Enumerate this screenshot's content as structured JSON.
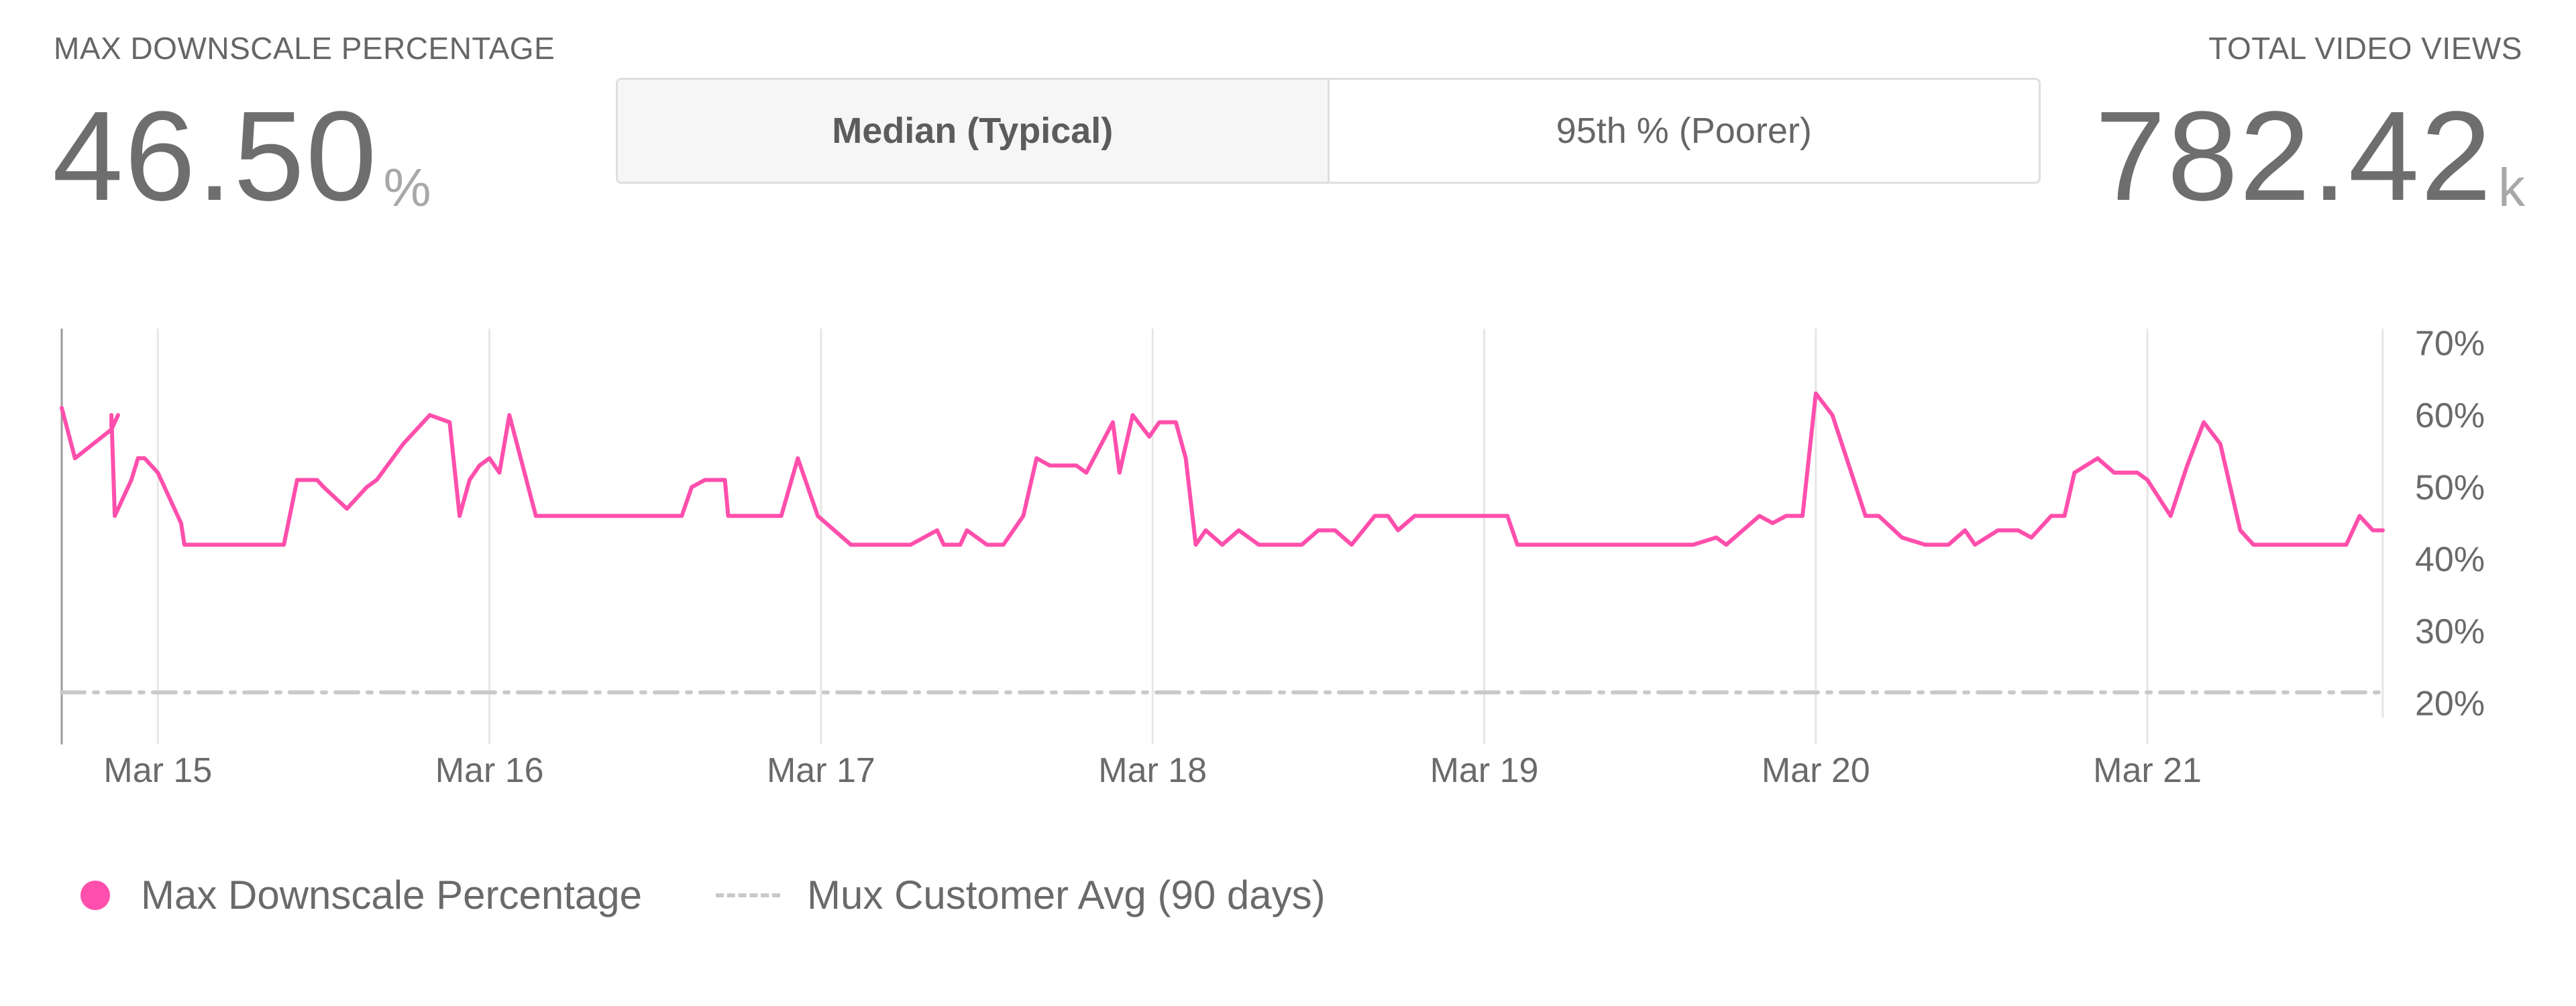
{
  "metrics": {
    "left": {
      "label": "MAX DOWNSCALE PERCENTAGE",
      "value": "46.50",
      "unit": "%"
    },
    "right": {
      "label": "TOTAL VIDEO VIEWS",
      "value": "782.42",
      "unit": "k"
    }
  },
  "toggle": {
    "options": [
      {
        "label": "Median (Typical)",
        "active": true
      },
      {
        "label": "95th % (Poorer)",
        "active": false
      }
    ]
  },
  "legend": {
    "series_label": "Max Downscale Percentage",
    "avg_label": "Mux Customer Avg (90 days)"
  },
  "colors": {
    "series": "#ff4fac",
    "avg": "#c9c9c9",
    "grid": "#e6e6e6"
  },
  "chart_data": {
    "type": "line",
    "title": "",
    "xlabel": "",
    "ylabel": "",
    "x_ticks": [
      "Mar 15",
      "Mar 16",
      "Mar 17",
      "Mar 18",
      "Mar 19",
      "Mar 20",
      "Mar 21"
    ],
    "y_ticks": [
      "70%",
      "60%",
      "50%",
      "40%",
      "30%",
      "20%"
    ],
    "ylim": [
      18,
      72
    ],
    "x_unit": "days from Mar 15",
    "xlim": [
      -0.29,
      6.71
    ],
    "grid": true,
    "legend_position": "bottom",
    "series": [
      {
        "name": "Max Downscale Percentage",
        "points": [
          [
            -0.29,
            61
          ],
          [
            -0.25,
            54
          ],
          [
            -0.14,
            58
          ],
          [
            -0.12,
            60
          ],
          [
            -0.14,
            58
          ],
          [
            -0.14,
            60
          ],
          [
            -0.13,
            46
          ],
          [
            -0.08,
            51
          ],
          [
            -0.06,
            54
          ],
          [
            -0.04,
            54
          ],
          [
            0,
            52
          ],
          [
            0.07,
            45
          ],
          [
            0.08,
            42
          ],
          [
            0.33,
            42
          ],
          [
            0.38,
            42
          ],
          [
            0.42,
            51
          ],
          [
            0.48,
            51
          ],
          [
            0.5,
            50
          ],
          [
            0.57,
            47
          ],
          [
            0.63,
            50
          ],
          [
            0.66,
            51
          ],
          [
            0.74,
            56
          ],
          [
            0.78,
            58
          ],
          [
            0.82,
            60
          ],
          [
            0.88,
            59
          ],
          [
            0.91,
            46
          ],
          [
            0.94,
            51
          ],
          [
            0.97,
            53
          ],
          [
            1.0,
            54
          ],
          [
            1.03,
            52
          ],
          [
            1.06,
            60
          ],
          [
            1.14,
            46
          ],
          [
            1.58,
            46
          ],
          [
            1.61,
            50
          ],
          [
            1.65,
            51
          ],
          [
            1.71,
            51
          ],
          [
            1.72,
            46
          ],
          [
            1.88,
            46
          ],
          [
            1.93,
            54
          ],
          [
            1.99,
            46
          ],
          [
            2.04,
            44
          ],
          [
            2.09,
            42
          ],
          [
            2.27,
            42
          ],
          [
            2.35,
            44
          ],
          [
            2.37,
            42
          ],
          [
            2.42,
            42
          ],
          [
            2.44,
            44
          ],
          [
            2.5,
            42
          ],
          [
            2.55,
            42
          ],
          [
            2.61,
            46
          ],
          [
            2.65,
            54
          ],
          [
            2.69,
            53
          ],
          [
            2.77,
            53
          ],
          [
            2.8,
            52
          ],
          [
            2.88,
            59
          ],
          [
            2.9,
            52
          ],
          [
            2.94,
            60
          ],
          [
            2.99,
            57
          ],
          [
            3.02,
            59
          ],
          [
            3.07,
            59
          ],
          [
            3.1,
            54
          ],
          [
            3.13,
            42
          ],
          [
            3.16,
            44
          ],
          [
            3.21,
            42
          ],
          [
            3.26,
            44
          ],
          [
            3.32,
            42
          ],
          [
            3.45,
            42
          ],
          [
            3.5,
            44
          ],
          [
            3.55,
            44
          ],
          [
            3.6,
            42
          ],
          [
            3.67,
            46
          ],
          [
            3.71,
            46
          ],
          [
            3.74,
            44
          ],
          [
            3.79,
            46
          ],
          [
            4.07,
            46
          ],
          [
            4.1,
            42
          ],
          [
            4.63,
            42
          ],
          [
            4.7,
            43
          ],
          [
            4.73,
            42
          ],
          [
            4.83,
            46
          ],
          [
            4.87,
            45
          ],
          [
            4.91,
            46
          ],
          [
            4.96,
            46
          ],
          [
            5.0,
            63
          ],
          [
            5.05,
            60
          ],
          [
            5.15,
            46
          ],
          [
            5.19,
            46
          ],
          [
            5.26,
            43
          ],
          [
            5.33,
            42
          ],
          [
            5.4,
            42
          ],
          [
            5.45,
            44
          ],
          [
            5.48,
            42
          ],
          [
            5.55,
            44
          ],
          [
            5.61,
            44
          ],
          [
            5.65,
            43
          ],
          [
            5.71,
            46
          ],
          [
            5.75,
            46
          ],
          [
            5.78,
            52
          ],
          [
            5.85,
            54
          ],
          [
            5.9,
            52
          ],
          [
            5.97,
            52
          ],
          [
            6.0,
            51
          ],
          [
            6.07,
            46
          ],
          [
            6.12,
            53
          ],
          [
            6.17,
            59
          ],
          [
            6.22,
            56
          ],
          [
            6.28,
            44
          ],
          [
            6.32,
            42
          ],
          [
            6.6,
            42
          ],
          [
            6.64,
            46
          ],
          [
            6.68,
            44
          ],
          [
            6.71,
            44
          ]
        ]
      },
      {
        "name": "Mux Customer Avg (90 days)",
        "dash": true,
        "points": [
          [
            -0.29,
            21.5
          ],
          [
            6.71,
            21.5
          ]
        ]
      }
    ]
  }
}
